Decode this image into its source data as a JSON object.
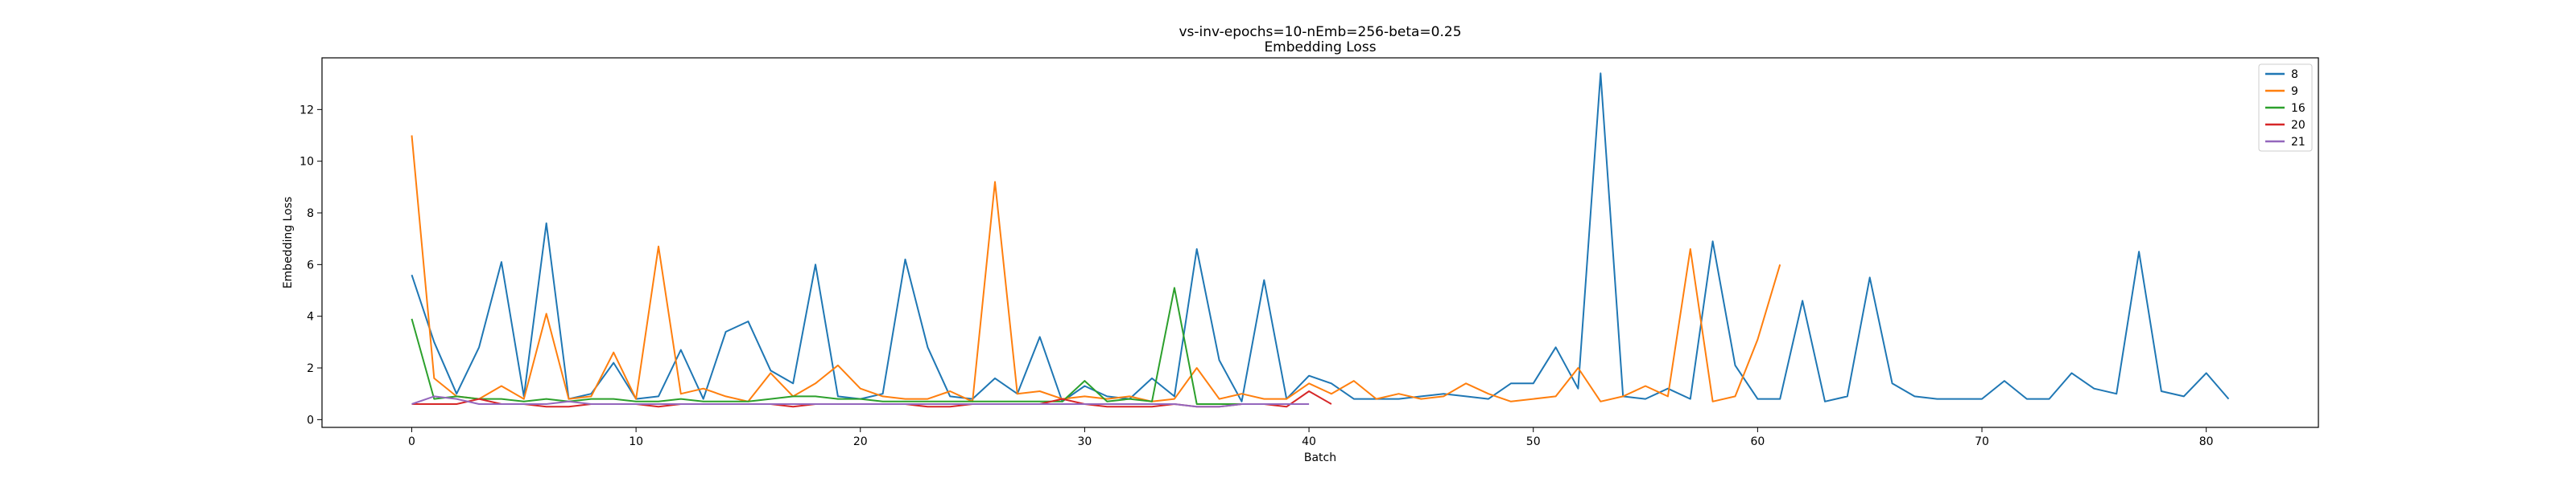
{
  "chart_data": {
    "type": "line",
    "title": "vs-inv-epochs=10-nEmb=256-beta=0.25",
    "subtitle": "Embedding Loss",
    "xlabel": "Batch",
    "ylabel": "Embedding Loss",
    "xlim": [
      -4,
      85
    ],
    "ylim": [
      -0.3,
      14.0
    ],
    "xticks": [
      0,
      10,
      20,
      30,
      40,
      50,
      60,
      70,
      80
    ],
    "yticks": [
      0,
      2,
      4,
      6,
      8,
      10,
      12
    ],
    "grid": false,
    "legend_position": "top-right",
    "series": [
      {
        "name": "8",
        "color": "#1f77b4",
        "x": [
          0,
          1,
          2,
          3,
          4,
          5,
          6,
          7,
          8,
          9,
          10,
          11,
          12,
          13,
          14,
          15,
          16,
          17,
          18,
          19,
          20,
          21,
          22,
          23,
          24,
          25,
          26,
          27,
          28,
          29,
          30,
          31,
          32,
          33,
          34,
          35,
          36,
          37,
          38,
          39,
          40,
          41,
          42,
          43,
          44,
          45,
          46,
          47,
          48,
          49,
          50,
          51,
          52,
          53,
          54,
          55,
          56,
          57,
          58,
          59,
          60,
          61,
          62,
          63,
          64,
          65,
          66,
          67,
          68,
          69,
          70,
          71,
          72,
          73,
          74,
          75,
          76,
          77,
          78,
          79,
          80,
          81
        ],
        "values": [
          5.6,
          3.0,
          1.0,
          2.8,
          6.1,
          0.9,
          7.6,
          0.8,
          1.0,
          2.2,
          0.8,
          0.9,
          2.7,
          0.8,
          3.4,
          3.8,
          1.9,
          1.4,
          6.0,
          0.9,
          0.8,
          1.0,
          6.2,
          2.8,
          0.9,
          0.8,
          1.6,
          1.0,
          3.2,
          0.7,
          1.3,
          0.9,
          0.8,
          1.6,
          0.9,
          6.6,
          2.3,
          0.7,
          5.4,
          0.8,
          1.7,
          1.4,
          0.8,
          0.8,
          0.8,
          0.9,
          1.0,
          0.9,
          0.8,
          1.4,
          1.4,
          2.8,
          1.2,
          13.4,
          0.9,
          0.8,
          1.2,
          0.8,
          6.9,
          2.1,
          0.8,
          0.8,
          4.6,
          0.7,
          0.9,
          5.5,
          1.4,
          0.9,
          0.8,
          0.8,
          0.8,
          1.5,
          0.8,
          0.8,
          1.8,
          1.2,
          1.0,
          6.5,
          1.1,
          0.9,
          1.8,
          0.8
        ]
      },
      {
        "name": "9",
        "color": "#ff7f0e",
        "x": [
          0,
          1,
          2,
          3,
          4,
          5,
          6,
          7,
          8,
          9,
          10,
          11,
          12,
          13,
          14,
          15,
          16,
          17,
          18,
          19,
          20,
          21,
          22,
          23,
          24,
          25,
          26,
          27,
          28,
          29,
          30,
          31,
          32,
          33,
          34,
          35,
          36,
          37,
          38,
          39,
          40,
          41,
          42,
          43,
          44,
          45,
          46,
          47,
          48,
          49,
          50,
          51,
          52,
          53,
          54,
          55,
          56,
          57,
          58,
          59,
          60,
          61
        ],
        "values": [
          11.0,
          1.6,
          0.9,
          0.8,
          1.3,
          0.8,
          4.1,
          0.8,
          0.9,
          2.6,
          0.8,
          6.7,
          1.0,
          1.2,
          0.9,
          0.7,
          1.8,
          0.9,
          1.4,
          2.1,
          1.2,
          0.9,
          0.8,
          0.8,
          1.1,
          0.7,
          9.2,
          1.0,
          1.1,
          0.8,
          0.9,
          0.8,
          0.9,
          0.7,
          0.8,
          2.0,
          0.8,
          1.0,
          0.8,
          0.8,
          1.4,
          1.0,
          1.5,
          0.8,
          1.0,
          0.8,
          0.9,
          1.4,
          1.0,
          0.7,
          0.8,
          0.9,
          2.0,
          0.7,
          0.9,
          1.3,
          0.9,
          6.6,
          0.7,
          0.9,
          3.1,
          6.0
        ]
      },
      {
        "name": "16",
        "color": "#2ca02c",
        "x": [
          0,
          1,
          2,
          3,
          4,
          5,
          6,
          7,
          8,
          9,
          10,
          11,
          12,
          13,
          14,
          15,
          16,
          17,
          18,
          19,
          20,
          21,
          22,
          23,
          24,
          25,
          26,
          27,
          28,
          29,
          30,
          31,
          32,
          33,
          34,
          35,
          36,
          37
        ],
        "values": [
          3.9,
          0.8,
          0.9,
          0.8,
          0.8,
          0.7,
          0.8,
          0.7,
          0.8,
          0.8,
          0.7,
          0.7,
          0.8,
          0.7,
          0.7,
          0.7,
          0.8,
          0.9,
          0.9,
          0.8,
          0.8,
          0.7,
          0.7,
          0.7,
          0.7,
          0.7,
          0.7,
          0.7,
          0.7,
          0.7,
          1.5,
          0.7,
          0.8,
          0.7,
          5.1,
          0.6,
          0.6,
          0.6
        ]
      },
      {
        "name": "20",
        "color": "#d62728",
        "x": [
          0,
          1,
          2,
          3,
          4,
          5,
          6,
          7,
          8,
          9,
          10,
          11,
          12,
          13,
          14,
          15,
          16,
          17,
          18,
          19,
          20,
          21,
          22,
          23,
          24,
          25,
          26,
          27,
          28,
          29,
          30,
          31,
          32,
          33,
          34,
          35,
          36,
          37,
          38,
          39,
          40,
          41
        ],
        "values": [
          0.6,
          0.6,
          0.6,
          0.8,
          0.6,
          0.6,
          0.5,
          0.5,
          0.6,
          0.6,
          0.6,
          0.5,
          0.6,
          0.6,
          0.6,
          0.6,
          0.6,
          0.5,
          0.6,
          0.6,
          0.6,
          0.6,
          0.6,
          0.5,
          0.5,
          0.6,
          0.6,
          0.6,
          0.6,
          0.8,
          0.6,
          0.5,
          0.5,
          0.5,
          0.6,
          0.5,
          0.5,
          0.6,
          0.6,
          0.5,
          1.1,
          0.6
        ]
      },
      {
        "name": "21",
        "color": "#9467bd",
        "x": [
          0,
          1,
          2,
          3,
          4,
          5,
          6,
          7,
          8,
          9,
          10,
          11,
          12,
          13,
          14,
          15,
          16,
          17,
          18,
          19,
          20,
          21,
          22,
          23,
          24,
          25,
          26,
          27,
          28,
          29,
          30,
          31,
          32,
          33,
          34,
          35,
          36,
          37,
          38,
          39,
          40
        ],
        "values": [
          0.6,
          0.9,
          0.8,
          0.6,
          0.6,
          0.6,
          0.6,
          0.7,
          0.6,
          0.6,
          0.6,
          0.6,
          0.6,
          0.6,
          0.6,
          0.6,
          0.6,
          0.6,
          0.6,
          0.6,
          0.6,
          0.6,
          0.6,
          0.6,
          0.6,
          0.6,
          0.6,
          0.6,
          0.6,
          0.6,
          0.6,
          0.6,
          0.6,
          0.6,
          0.6,
          0.5,
          0.5,
          0.6,
          0.6,
          0.6,
          0.6
        ]
      }
    ]
  }
}
